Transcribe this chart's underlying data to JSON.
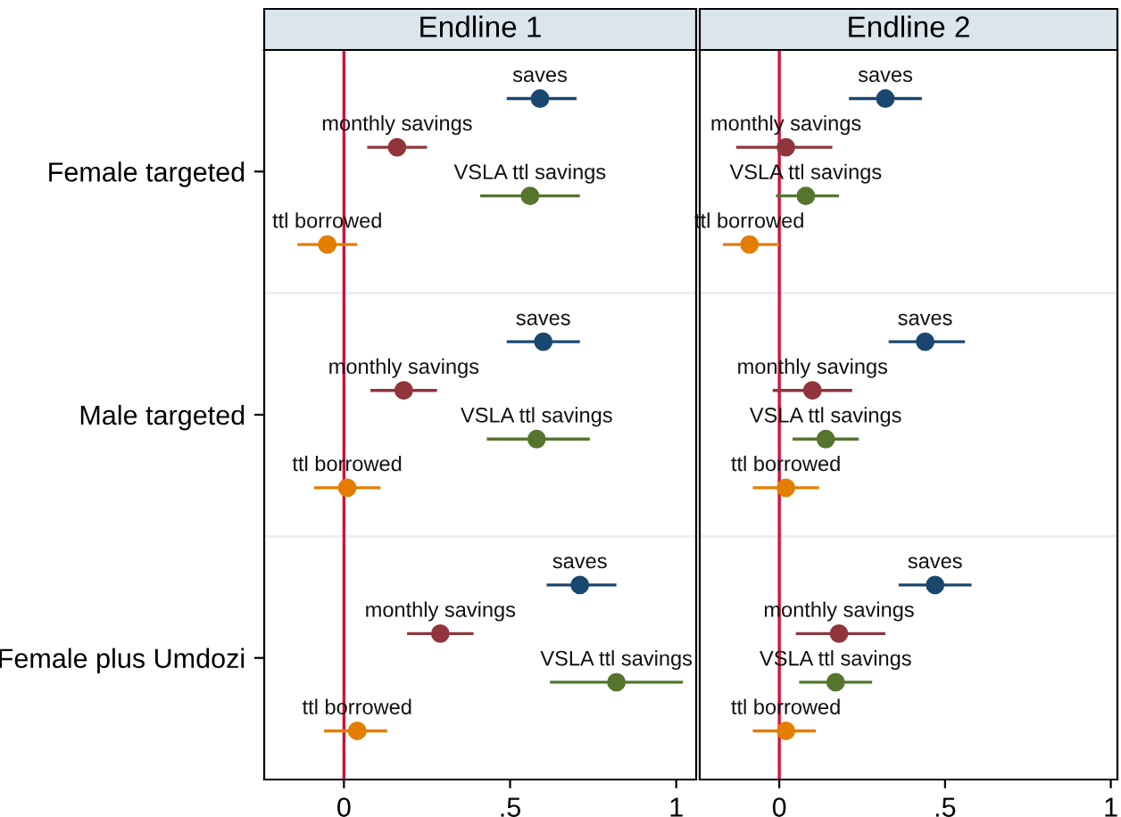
{
  "chart_data": [
    {
      "type": "scatter",
      "orientation": "horizontal",
      "title": "Endline 1",
      "categories": [
        "Female targeted",
        "Male targeted",
        "Female plus Umdozi"
      ],
      "xlim": [
        -0.24,
        1.06
      ],
      "xticks": [
        0,
        {
          "value": 0.5,
          "label": ".5"
        },
        1
      ],
      "marker": "circle",
      "legend": false,
      "grid": false,
      "ref_lines": [
        {
          "axis": "x",
          "value": 0,
          "color": "#d0103a"
        }
      ],
      "series": [
        {
          "name": "saves",
          "color": "#1a476f",
          "values": [
            0.59,
            0.6,
            0.71
          ],
          "errors": [
            [
              0.49,
              0.7
            ],
            [
              0.49,
              0.71
            ],
            [
              0.61,
              0.82
            ]
          ]
        },
        {
          "name": "monthly savings",
          "color": "#90353b",
          "values": [
            0.16,
            0.18,
            0.29
          ],
          "errors": [
            [
              0.07,
              0.25
            ],
            [
              0.08,
              0.28
            ],
            [
              0.19,
              0.39
            ]
          ]
        },
        {
          "name": "VSLA ttl savings",
          "color": "#55752f",
          "values": [
            0.56,
            0.58,
            0.82
          ],
          "errors": [
            [
              0.41,
              0.71
            ],
            [
              0.43,
              0.74
            ],
            [
              0.62,
              1.02
            ]
          ]
        },
        {
          "name": "ttl borrowed",
          "color": "#e37e00",
          "values": [
            -0.05,
            0.01,
            0.04
          ],
          "errors": [
            [
              -0.14,
              0.04
            ],
            [
              -0.09,
              0.11
            ],
            [
              -0.06,
              0.13
            ]
          ]
        }
      ]
    },
    {
      "type": "scatter",
      "orientation": "horizontal",
      "title": "Endline 2",
      "categories": [
        null,
        null,
        null
      ],
      "tick_labels": "x",
      "xlim": [
        -0.24,
        1.02
      ],
      "xticks": [
        0,
        {
          "value": 0.5,
          "label": ".5"
        },
        1
      ],
      "marker": "circle",
      "legend": false,
      "grid": false,
      "ref_lines": [
        {
          "axis": "x",
          "value": 0,
          "color": "#d0103a"
        }
      ],
      "series": [
        {
          "name": "saves",
          "color": "#1a476f",
          "values": [
            0.32,
            0.44,
            0.47
          ],
          "errors": [
            [
              0.21,
              0.43
            ],
            [
              0.33,
              0.56
            ],
            [
              0.36,
              0.58
            ]
          ]
        },
        {
          "name": "monthly savings",
          "color": "#90353b",
          "values": [
            0.02,
            0.1,
            0.18
          ],
          "errors": [
            [
              -0.13,
              0.16
            ],
            [
              -0.02,
              0.22
            ],
            [
              0.05,
              0.32
            ]
          ]
        },
        {
          "name": "VSLA ttl savings",
          "color": "#55752f",
          "values": [
            0.08,
            0.14,
            0.17
          ],
          "errors": [
            [
              -0.01,
              0.18
            ],
            [
              0.04,
              0.24
            ],
            [
              0.06,
              0.28
            ]
          ]
        },
        {
          "name": "ttl borrowed",
          "color": "#e37e00",
          "values": [
            -0.09,
            0.02,
            0.02
          ],
          "errors": [
            [
              -0.17,
              0.0
            ],
            [
              -0.08,
              0.12
            ],
            [
              -0.08,
              0.11
            ]
          ]
        }
      ]
    }
  ]
}
